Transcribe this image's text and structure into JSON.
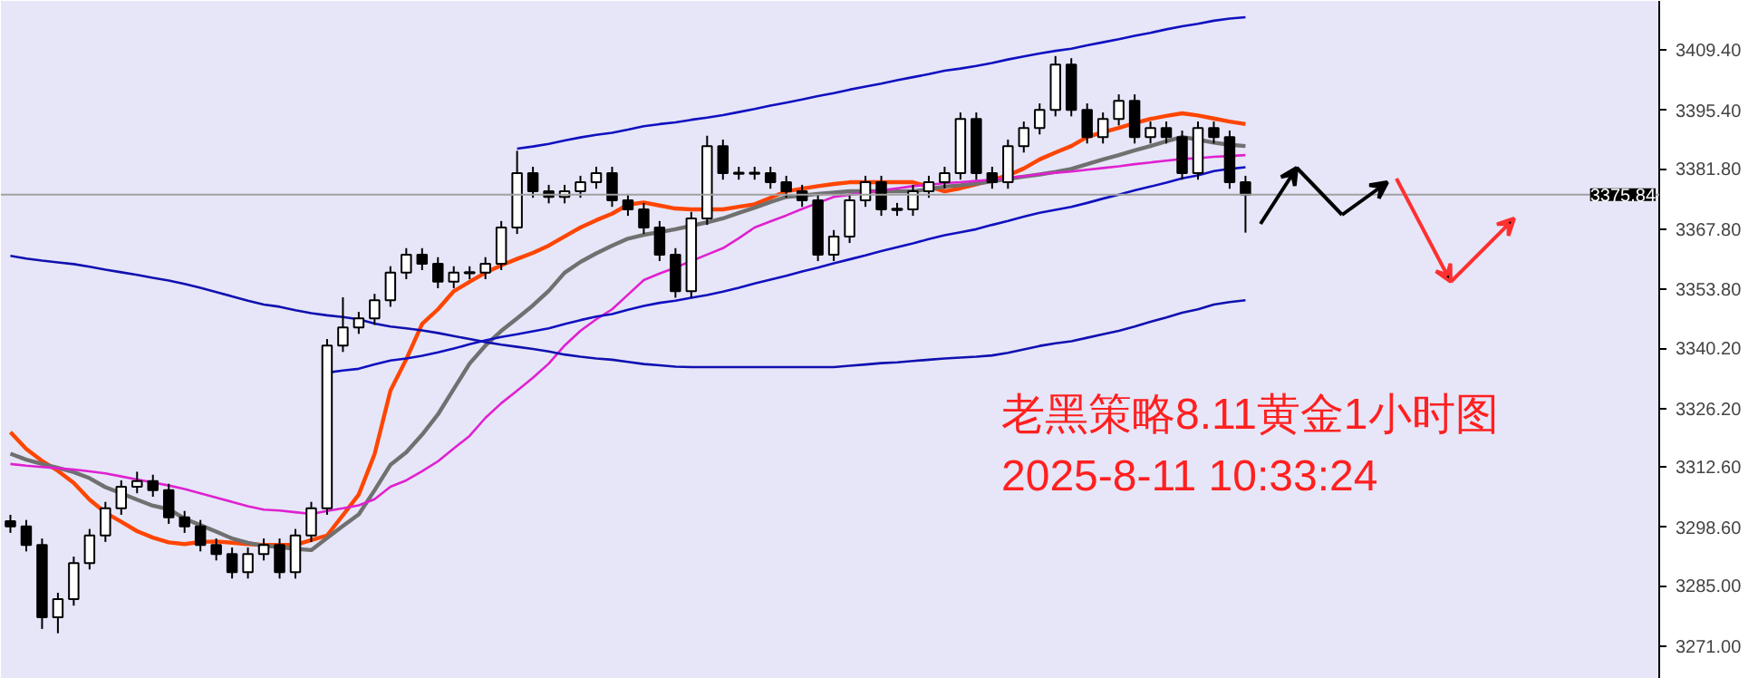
{
  "chart_data": {
    "type": "candlestick",
    "categories": [
      null,
      null,
      null,
      null,
      null,
      null,
      null,
      null,
      null,
      null,
      null,
      null,
      null,
      null,
      null,
      null,
      null,
      null,
      null,
      null,
      null,
      null,
      null,
      null,
      null,
      null,
      null,
      null,
      null,
      null,
      null,
      null,
      null,
      null,
      null,
      null,
      null,
      null,
      null,
      null,
      null,
      null,
      null,
      null,
      null,
      null,
      null,
      null,
      null,
      null,
      null,
      null,
      null,
      null,
      null,
      null,
      null,
      null,
      null,
      null,
      null,
      null,
      null,
      null,
      null,
      null,
      null,
      null,
      null,
      null,
      null,
      null,
      null,
      null,
      null,
      null,
      null,
      null,
      null
    ],
    "ohlc": [
      [
        3300.0,
        3301.5,
        3297.3,
        3298.8
      ],
      [
        3298.8,
        3300.3,
        3293.0,
        3294.5
      ],
      [
        3294.5,
        3296.0,
        3275.0,
        3277.7
      ],
      [
        3277.7,
        3283.4,
        3274.0,
        3281.9
      ],
      [
        3281.9,
        3291.8,
        3280.4,
        3290.3
      ],
      [
        3290.3,
        3298.2,
        3288.8,
        3296.7
      ],
      [
        3296.7,
        3304.5,
        3295.2,
        3303.0
      ],
      [
        3303.0,
        3309.5,
        3301.5,
        3308.0
      ],
      [
        3308.0,
        3311.5,
        3306.5,
        3309.3
      ],
      [
        3309.3,
        3310.8,
        3305.7,
        3307.2
      ],
      [
        3307.2,
        3308.7,
        3299.4,
        3300.9
      ],
      [
        3300.9,
        3302.4,
        3297.3,
        3298.8
      ],
      [
        3298.8,
        3300.3,
        3293.0,
        3294.5
      ],
      [
        3294.5,
        3296.0,
        3290.9,
        3292.4
      ],
      [
        3292.4,
        3293.9,
        3286.7,
        3288.2
      ],
      [
        3288.2,
        3293.9,
        3286.7,
        3292.4
      ],
      [
        3292.4,
        3296.0,
        3290.9,
        3294.5
      ],
      [
        3294.5,
        3296.0,
        3286.7,
        3288.2
      ],
      [
        3288.2,
        3298.2,
        3286.7,
        3296.7
      ],
      [
        3296.7,
        3304.5,
        3295.2,
        3303.0
      ],
      [
        3303.0,
        3342.3,
        3301.5,
        3340.8
      ],
      [
        3340.8,
        3352.0,
        3339.3,
        3345.0
      ],
      [
        3345.0,
        3348.6,
        3343.5,
        3347.1
      ],
      [
        3347.1,
        3352.8,
        3345.6,
        3351.3
      ],
      [
        3351.3,
        3359.2,
        3349.8,
        3357.7
      ],
      [
        3357.7,
        3363.4,
        3356.2,
        3361.9
      ],
      [
        3361.9,
        3363.4,
        3358.3,
        3359.8
      ],
      [
        3359.8,
        3361.3,
        3354.1,
        3355.6
      ],
      [
        3355.6,
        3359.2,
        3354.1,
        3357.7
      ],
      [
        3357.7,
        3359.2,
        3356.2,
        3357.7
      ],
      [
        3357.7,
        3361.3,
        3356.2,
        3359.8
      ],
      [
        3359.8,
        3369.7,
        3358.3,
        3368.2
      ],
      [
        3368.2,
        3386.0,
        3366.7,
        3380.8
      ],
      [
        3380.8,
        3382.3,
        3375.1,
        3376.6
      ],
      [
        3376.6,
        3378.1,
        3373.8,
        3375.3
      ],
      [
        3375.3,
        3378.1,
        3373.8,
        3376.6
      ],
      [
        3376.6,
        3380.2,
        3375.1,
        3378.7
      ],
      [
        3378.7,
        3382.3,
        3377.2,
        3380.8
      ],
      [
        3380.8,
        3382.3,
        3373.0,
        3374.5
      ],
      [
        3374.5,
        3376.0,
        3370.9,
        3372.4
      ],
      [
        3372.4,
        3373.9,
        3366.7,
        3368.2
      ],
      [
        3368.2,
        3369.7,
        3360.4,
        3361.9
      ],
      [
        3361.9,
        3363.4,
        3351.9,
        3353.4
      ],
      [
        3353.4,
        3371.8,
        3351.9,
        3370.3
      ],
      [
        3370.3,
        3389.5,
        3368.8,
        3387.1
      ],
      [
        3387.1,
        3388.6,
        3379.3,
        3380.8
      ],
      [
        3380.8,
        3382.3,
        3379.3,
        3380.8
      ],
      [
        3380.8,
        3382.3,
        3379.3,
        3380.8
      ],
      [
        3380.8,
        3382.3,
        3377.2,
        3378.7
      ],
      [
        3378.7,
        3380.2,
        3375.1,
        3376.6
      ],
      [
        3376.6,
        3378.1,
        3373.0,
        3374.5
      ],
      [
        3374.5,
        3376.0,
        3360.4,
        3361.9
      ],
      [
        3361.9,
        3367.6,
        3360.4,
        3366.1
      ],
      [
        3366.1,
        3376.0,
        3364.6,
        3374.5
      ],
      [
        3374.5,
        3380.2,
        3373.0,
        3378.7
      ],
      [
        3378.7,
        3380.2,
        3370.9,
        3372.4
      ],
      [
        3372.4,
        3373.9,
        3370.9,
        3372.4
      ],
      [
        3372.4,
        3378.1,
        3370.9,
        3376.6
      ],
      [
        3376.6,
        3380.2,
        3375.1,
        3378.7
      ],
      [
        3378.7,
        3382.3,
        3377.2,
        3380.8
      ],
      [
        3380.8,
        3394.9,
        3379.3,
        3393.4
      ],
      [
        3393.4,
        3394.9,
        3379.3,
        3380.8
      ],
      [
        3380.8,
        3382.3,
        3377.2,
        3378.7
      ],
      [
        3378.7,
        3388.6,
        3377.2,
        3387.1
      ],
      [
        3387.1,
        3392.8,
        3385.6,
        3391.3
      ],
      [
        3391.3,
        3397.0,
        3389.8,
        3395.5
      ],
      [
        3395.5,
        3408.0,
        3394.0,
        3406.0
      ],
      [
        3406.0,
        3407.5,
        3394.0,
        3395.5
      ],
      [
        3395.5,
        3397.0,
        3387.7,
        3389.2
      ],
      [
        3389.2,
        3394.9,
        3387.7,
        3393.4
      ],
      [
        3393.4,
        3399.1,
        3391.9,
        3397.6
      ],
      [
        3397.6,
        3399.1,
        3387.7,
        3389.2
      ],
      [
        3389.2,
        3392.8,
        3387.7,
        3391.3
      ],
      [
        3391.3,
        3392.8,
        3387.7,
        3389.2
      ],
      [
        3389.2,
        3390.7,
        3379.3,
        3380.8
      ],
      [
        3380.8,
        3392.8,
        3379.3,
        3391.3
      ],
      [
        3391.3,
        3392.8,
        3387.7,
        3389.2
      ],
      [
        3389.2,
        3390.7,
        3377.2,
        3378.7
      ],
      [
        3378.7,
        3380.2,
        3367.0,
        3375.84
      ]
    ],
    "series": [
      {
        "type": "line",
        "color": "#ff4500",
        "values": [
          3320.7,
          3316.8,
          3314.0,
          3311.7,
          3308.9,
          3305.0,
          3302.0,
          3299.9,
          3297.7,
          3296.2,
          3295.1,
          3294.7,
          3295.2,
          3295.3,
          3295.0,
          3294.7,
          3294.5,
          3294.5,
          3294.5,
          3295.6,
          3296.7,
          3301.4,
          3306.2,
          3315.6,
          3330.3,
          3337.6,
          3345.8,
          3349.2,
          3353.4,
          3355.6,
          3357.7,
          3359.4,
          3360.9,
          3362.3,
          3364.0,
          3366.1,
          3368.2,
          3369.9,
          3371.4,
          3373.5,
          3374.0,
          3373.3,
          3372.6,
          3372.4,
          3372.4,
          3372.4,
          3373.0,
          3373.6,
          3375.1,
          3376.6,
          3377.2,
          3377.8,
          3378.3,
          3378.7,
          3378.7,
          3378.7,
          3378.7,
          3378.7,
          3377.7,
          3376.6,
          3377.3,
          3378.2,
          3379.2,
          3380.3,
          3381.9,
          3384.0,
          3385.6,
          3387.1,
          3389.2,
          3390.3,
          3391.3,
          3392.4,
          3393.4,
          3394.1,
          3394.7,
          3394.2,
          3393.5,
          3392.8,
          3392.2
        ]
      },
      {
        "type": "line",
        "color": "#707070",
        "values": [
          3315.7,
          3314.3,
          3313.3,
          3312.4,
          3311.4,
          3310.0,
          3307.9,
          3306.5,
          3305.0,
          3303.6,
          3302.8,
          3300.6,
          3299.1,
          3297.6,
          3296.0,
          3295.0,
          3294.3,
          3294.0,
          3293.6,
          3293.3,
          3296.1,
          3298.9,
          3301.6,
          3307.2,
          3313.1,
          3316.0,
          3320.1,
          3324.8,
          3330.7,
          3336.6,
          3340.8,
          3344.2,
          3347.1,
          3350.1,
          3353.5,
          3357.7,
          3360.2,
          3362.2,
          3364.0,
          3365.6,
          3366.5,
          3367.1,
          3367.8,
          3368.6,
          3369.4,
          3370.3,
          3371.6,
          3372.8,
          3374.1,
          3375.3,
          3375.6,
          3376.0,
          3376.3,
          3376.6,
          3376.6,
          3376.6,
          3376.6,
          3376.6,
          3377.1,
          3377.7,
          3378.0,
          3378.4,
          3378.9,
          3379.5,
          3380.0,
          3380.5,
          3381.1,
          3381.8,
          3382.9,
          3384.0,
          3385.0,
          3386.1,
          3387.1,
          3388.2,
          3389.2,
          3388.6,
          3387.9,
          3387.4,
          3387.1
        ]
      },
      {
        "type": "line",
        "color": "#e020d0",
        "values": [
          3313.3,
          3312.9,
          3312.6,
          3312.3,
          3312.0,
          3311.6,
          3311.1,
          3310.4,
          3309.7,
          3309.0,
          3308.3,
          3307.5,
          3306.5,
          3305.5,
          3304.5,
          3303.5,
          3302.7,
          3302.5,
          3302.1,
          3301.7,
          3302.4,
          3303.0,
          3303.7,
          3305.1,
          3308.0,
          3309.5,
          3311.6,
          3313.9,
          3316.9,
          3319.8,
          3324.0,
          3327.4,
          3330.3,
          3333.3,
          3336.6,
          3340.8,
          3344.2,
          3346.9,
          3349.2,
          3352.6,
          3356.0,
          3357.5,
          3358.9,
          3360.4,
          3361.9,
          3363.4,
          3365.7,
          3368.2,
          3369.6,
          3371.0,
          3372.5,
          3373.9,
          3375.3,
          3375.8,
          3376.3,
          3376.8,
          3377.3,
          3377.8,
          3378.1,
          3378.5,
          3378.7,
          3379.0,
          3379.3,
          3379.7,
          3380.1,
          3380.6,
          3380.9,
          3381.2,
          3381.6,
          3382.0,
          3382.4,
          3382.9,
          3383.3,
          3383.7,
          3384.1,
          3384.3,
          3384.6,
          3384.8,
          3385.0
        ]
      },
      {
        "type": "line",
        "color": "#1010b0",
        "values": [
          3361.6,
          3361.0,
          3360.5,
          3360.1,
          3359.7,
          3359.1,
          3358.4,
          3357.8,
          3357.2,
          3356.5,
          3355.9,
          3355.1,
          3354.2,
          3353.2,
          3352.2,
          3351.2,
          3350.3,
          3349.8,
          3349.0,
          3348.3,
          3347.8,
          3347.4,
          3346.9,
          3345.9,
          3345.2,
          3344.8,
          3344.3,
          3343.7,
          3343.0,
          3342.3,
          3341.6,
          3341.0,
          3340.5,
          3340.0,
          3339.4,
          3338.7,
          3338.2,
          3337.8,
          3337.5,
          3337.0,
          3336.5,
          3336.2,
          3335.9,
          3335.8,
          3335.8,
          3335.8,
          3335.8,
          3335.8,
          3335.8,
          3335.8,
          3335.8,
          3335.8,
          3335.8,
          3336.1,
          3336.4,
          3336.7,
          3336.9,
          3337.2,
          3337.5,
          3337.8,
          3338.0,
          3338.2,
          3338.5,
          3339.1,
          3339.9,
          3340.7,
          3341.3,
          3341.8,
          3342.6,
          3343.4,
          3344.2,
          3345.2,
          3346.3,
          3347.3,
          3348.4,
          3349.2,
          3350.3,
          3350.9,
          3351.3
        ]
      },
      {
        "type": "line",
        "color": "#1010c0",
        "values": [
          null,
          null,
          null,
          null,
          null,
          null,
          null,
          null,
          null,
          null,
          null,
          null,
          null,
          null,
          null,
          null,
          null,
          null,
          null,
          null,
          null,
          null,
          null,
          null,
          null,
          null,
          null,
          null,
          null,
          null,
          null,
          null,
          3386.5,
          3387.0,
          3387.6,
          3388.4,
          3389.1,
          3389.7,
          3390.2,
          3390.9,
          3391.7,
          3392.2,
          3392.6,
          3393.2,
          3393.7,
          3394.3,
          3395.0,
          3395.7,
          3396.5,
          3397.2,
          3397.9,
          3398.7,
          3399.4,
          3400.2,
          3400.9,
          3401.6,
          3402.4,
          3403.1,
          3403.8,
          3404.6,
          3405.1,
          3405.7,
          3406.4,
          3407.2,
          3407.9,
          3408.6,
          3409.2,
          3409.7,
          3410.5,
          3411.2,
          3411.9,
          3412.7,
          3413.4,
          3414.2,
          3414.9,
          3415.5,
          3416.2,
          3416.7,
          3417.0
        ]
      },
      {
        "type": "line",
        "color": "#1010c0",
        "values": [
          null,
          null,
          null,
          null,
          null,
          null,
          null,
          null,
          null,
          null,
          null,
          null,
          null,
          null,
          null,
          null,
          null,
          null,
          null,
          null,
          3334.5,
          3335.0,
          3335.4,
          3336.4,
          3337.3,
          3337.8,
          3338.4,
          3339.2,
          3340.1,
          3341.1,
          3342.0,
          3342.8,
          3343.4,
          3344.1,
          3344.8,
          3345.8,
          3346.7,
          3347.5,
          3348.1,
          3349.1,
          3350.0,
          3350.7,
          3351.2,
          3351.9,
          3352.5,
          3353.3,
          3354.2,
          3355.2,
          3356.1,
          3357.0,
          3358.0,
          3358.9,
          3359.9,
          3360.8,
          3361.7,
          3362.7,
          3363.6,
          3364.5,
          3365.5,
          3366.4,
          3367.1,
          3367.8,
          3368.8,
          3369.7,
          3370.7,
          3371.6,
          3372.3,
          3373.0,
          3373.9,
          3374.9,
          3375.8,
          3376.8,
          3377.7,
          3378.6,
          3379.6,
          3380.3,
          3381.3,
          3381.8,
          3382.2
        ]
      }
    ],
    "ylim": [
      3263.4,
      3420.8
    ],
    "yticks": [
      {
        "value": 3409.4,
        "label": "3409.40"
      },
      {
        "value": 3395.4,
        "label": "3395.40"
      },
      {
        "value": 3381.8,
        "label": "3381.80"
      },
      {
        "value": 3367.8,
        "label": "3367.80"
      },
      {
        "value": 3353.8,
        "label": "3353.80"
      },
      {
        "value": 3340.2,
        "label": "3340.20"
      },
      {
        "value": 3326.2,
        "label": "3326.20"
      },
      {
        "value": 3312.6,
        "label": "3312.60"
      },
      {
        "value": 3298.6,
        "label": "3298.60"
      },
      {
        "value": 3285.0,
        "label": "3285.00"
      },
      {
        "value": 3271.0,
        "label": "3271.00"
      }
    ],
    "tick_labels": "y",
    "ref_lines": [
      {
        "axis": "y",
        "value": 3375.84,
        "label": "3375.84",
        "color": "#a0a0a0"
      }
    ],
    "annotations": [
      "老黑策略8.11黄金1小时图",
      "2025-8-11 10:33:24"
    ]
  }
}
